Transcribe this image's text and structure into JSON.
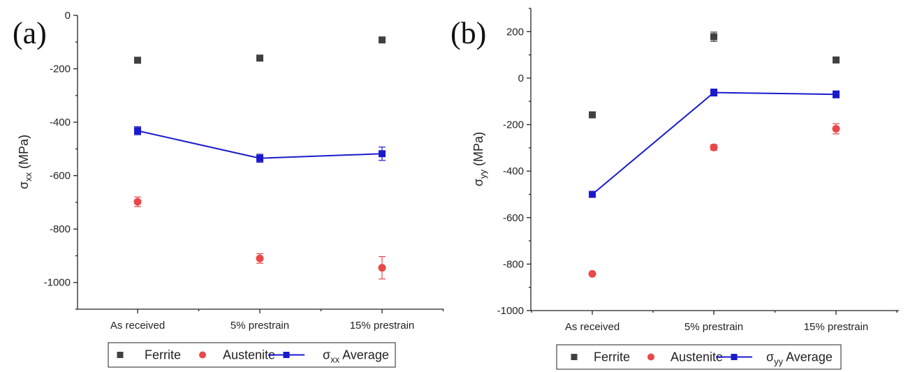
{
  "chart_data": [
    {
      "panel": "(a)",
      "type": "scatter",
      "categories": [
        "As received",
        "5% prestrain",
        "15% prestrain"
      ],
      "ylabel": {
        "symbol": "σ",
        "sub": "xx",
        "unit": " (MPa)"
      },
      "ylim": [
        -1100,
        0
      ],
      "yticks": [
        0,
        -200,
        -400,
        -600,
        -800,
        -1000
      ],
      "yticklabels": [
        "0",
        "-200",
        "-400",
        "-600",
        "-800",
        "-1000"
      ],
      "series": [
        {
          "name": "Ferrite",
          "marker": "square",
          "color": "#404040",
          "values": [
            -168,
            -160,
            -92
          ],
          "errors": [
            10,
            8,
            6
          ]
        },
        {
          "name": "Austenite",
          "marker": "circle",
          "color": "#e84848",
          "values": [
            -698,
            -910,
            -945
          ],
          "errors": [
            18,
            18,
            42
          ]
        },
        {
          "name": "Average",
          "name_symbol": "σ",
          "name_sub": "xx",
          "marker": "square",
          "line": true,
          "color": "#1a1acc",
          "values": [
            -432,
            -535,
            -518
          ],
          "errors": [
            15,
            15,
            25
          ]
        }
      ],
      "legend": "bottom"
    },
    {
      "panel": "(b)",
      "type": "scatter",
      "categories": [
        "As received",
        "5% prestrain",
        "15% prestrain"
      ],
      "ylabel": {
        "symbol": "σ",
        "sub": "yy",
        "unit": " (MPa)"
      },
      "ylim": [
        -1000,
        300
      ],
      "yticks": [
        200,
        0,
        -200,
        -400,
        -600,
        -800,
        -1000
      ],
      "yticklabels": [
        "200",
        "0",
        "-200",
        "-400",
        "-600",
        "-800",
        "-1000"
      ],
      "series": [
        {
          "name": "Ferrite",
          "marker": "square",
          "color": "#404040",
          "values": [
            -158,
            178,
            78
          ],
          "errors": [
            6,
            20,
            6
          ]
        },
        {
          "name": "Austenite",
          "marker": "circle",
          "color": "#e84848",
          "values": [
            -842,
            -298,
            -218
          ],
          "errors": [
            5,
            12,
            22
          ]
        },
        {
          "name": "Average",
          "name_symbol": "σ",
          "name_sub": "yy",
          "marker": "square",
          "line": true,
          "color": "#1a1acc",
          "values": [
            -500,
            -62,
            -70
          ],
          "errors": [
            5,
            15,
            15
          ]
        }
      ],
      "legend": "bottom"
    }
  ]
}
